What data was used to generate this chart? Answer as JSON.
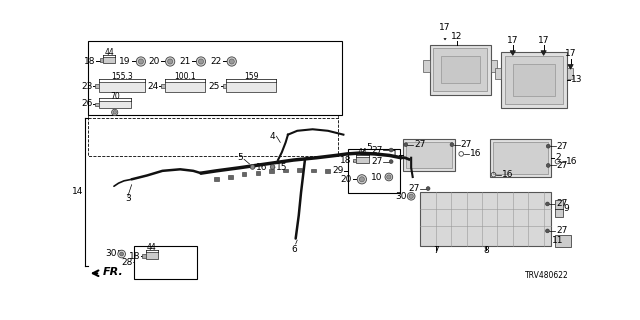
{
  "bg_color": "#ffffff",
  "diagram_code": "TRV480622",
  "font_size_label": 6.5,
  "font_size_small": 5.5,
  "font_size_code": 5.5
}
